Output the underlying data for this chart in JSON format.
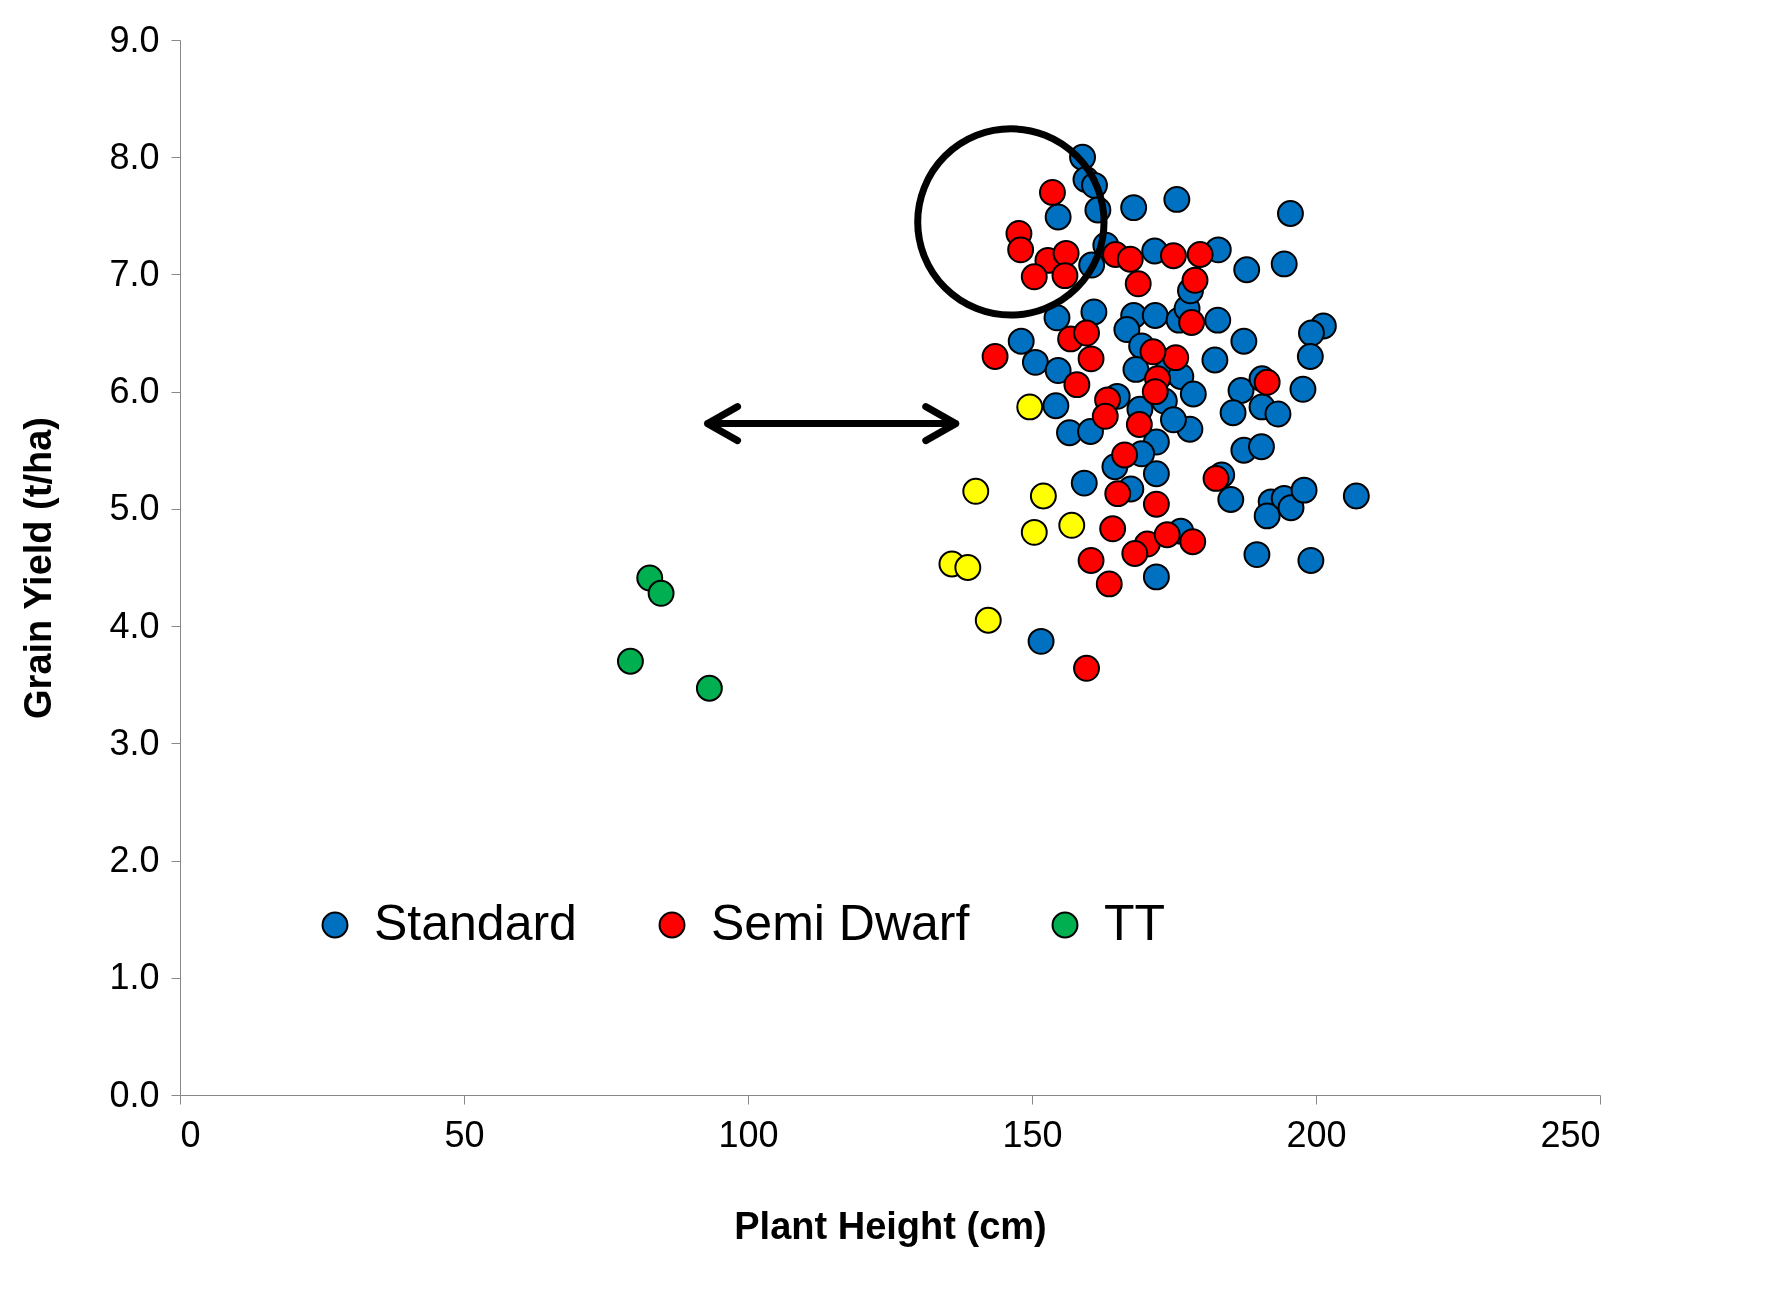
{
  "chart_data": {
    "type": "scatter",
    "xlabel": "Plant Height (cm)",
    "ylabel": "Grain Yield (t/ha)",
    "xlim": [
      0,
      250
    ],
    "xticks": [
      0,
      50,
      100,
      150,
      200,
      250
    ],
    "ylim": [
      0,
      9
    ],
    "yticks": [
      {
        "value": 0,
        "label": "0.0"
      },
      {
        "value": 1,
        "label": "1.0"
      },
      {
        "value": 2,
        "label": "2.0"
      },
      {
        "value": 3,
        "label": "3.0"
      },
      {
        "value": 4,
        "label": "4.0"
      },
      {
        "value": 5,
        "label": "5.0"
      },
      {
        "value": 6,
        "label": "6.0"
      },
      {
        "value": 7,
        "label": "7.0"
      },
      {
        "value": 8,
        "label": "8.0"
      },
      {
        "value": 9,
        "label": "9.0"
      }
    ],
    "grid": false,
    "legend": "bottom",
    "marker": "circle",
    "series": [
      {
        "color": "#ffff00",
        "x": [
          149.6,
          140.1,
          152,
          150.4,
          157,
          135.9,
          138.7,
          142.3
        ],
        "values": [
          5.87,
          5.15,
          5.11,
          4.8,
          4.86,
          4.53,
          4.5,
          4.05
        ]
      },
      {
        "name": "Standard",
        "color": "#0070c0",
        "x": [
          158.9,
          159.5,
          161,
          154.6,
          161.6,
          167.9,
          175.5,
          195.5,
          163,
          160.5,
          171.6,
          182.8,
          187.8,
          194.4,
          154.4,
          160.9,
          167.9,
          166.7,
          171.7,
          175.9,
          177.3,
          177.9,
          182.7,
          201.3,
          199.2,
          199,
          148.1,
          150.6,
          154.6,
          169.3,
          168.3,
          173.8,
          176.2,
          182.2,
          178.4,
          186.8,
          187.3,
          190.5,
          197.7,
          154.2,
          165,
          173.3,
          169,
          190.5,
          185.4,
          193.3,
          156.6,
          177.8,
          160.3,
          174.9,
          171.9,
          169.3,
          164.6,
          187.3,
          190.4,
          159.2,
          167.4,
          171.9,
          183.4,
          185,
          192.1,
          194.4,
          195.6,
          191.4,
          197.9,
          207.1,
          176.2,
          189.6,
          199.1,
          171.9,
          151.6
        ],
        "values": [
          8.0,
          7.81,
          7.76,
          7.49,
          7.55,
          7.57,
          7.64,
          7.52,
          7.25,
          7.08,
          7.2,
          7.21,
          7.04,
          7.09,
          6.63,
          6.68,
          6.65,
          6.53,
          6.65,
          6.61,
          6.71,
          6.86,
          6.61,
          6.56,
          6.5,
          6.3,
          6.43,
          6.25,
          6.18,
          6.39,
          6.19,
          6.17,
          6.13,
          6.27,
          5.98,
          6.01,
          6.43,
          6.11,
          6.02,
          5.88,
          5.96,
          5.92,
          5.85,
          5.87,
          5.82,
          5.81,
          5.65,
          5.68,
          5.66,
          5.76,
          5.57,
          5.47,
          5.36,
          5.5,
          5.53,
          5.22,
          5.17,
          5.3,
          5.29,
          5.08,
          5.06,
          5.09,
          5.01,
          4.94,
          5.16,
          5.11,
          4.81,
          4.61,
          4.56,
          4.42,
          3.87
        ]
      },
      {
        "name": "Semi Dwarf",
        "color": "#ff0000",
        "x": [
          153.6,
          147.7,
          148,
          152.8,
          156,
          150.4,
          155.8,
          164.7,
          167.3,
          174.9,
          179.6,
          168.7,
          178.7,
          178.1,
          143.5,
          156.8,
          159.6,
          160.4,
          157.9,
          175.3,
          171.3,
          172.1,
          171.7,
          191.4,
          163.3,
          162.9,
          168.9,
          166.3,
          182.4,
          165.1,
          171.9,
          164.2,
          170.3,
          173.8,
          168.1,
          178.3,
          160.4,
          163.6,
          159.6
        ],
        "values": [
          7.7,
          7.35,
          7.21,
          7.12,
          7.18,
          6.98,
          6.99,
          7.17,
          7.13,
          7.16,
          7.17,
          6.92,
          6.95,
          6.59,
          6.3,
          6.45,
          6.5,
          6.28,
          6.06,
          6.29,
          6.34,
          6.11,
          6.0,
          6.08,
          5.93,
          5.79,
          5.72,
          5.46,
          5.26,
          5.13,
          5.04,
          4.83,
          4.7,
          4.78,
          4.62,
          4.72,
          4.56,
          4.36,
          3.64
        ]
      },
      {
        "name": "TT",
        "color": "#00b050",
        "x": [
          82.7,
          84.7,
          79.3,
          93.2
        ],
        "values": [
          4.41,
          4.28,
          3.7,
          3.47
        ]
      }
    ]
  }
}
